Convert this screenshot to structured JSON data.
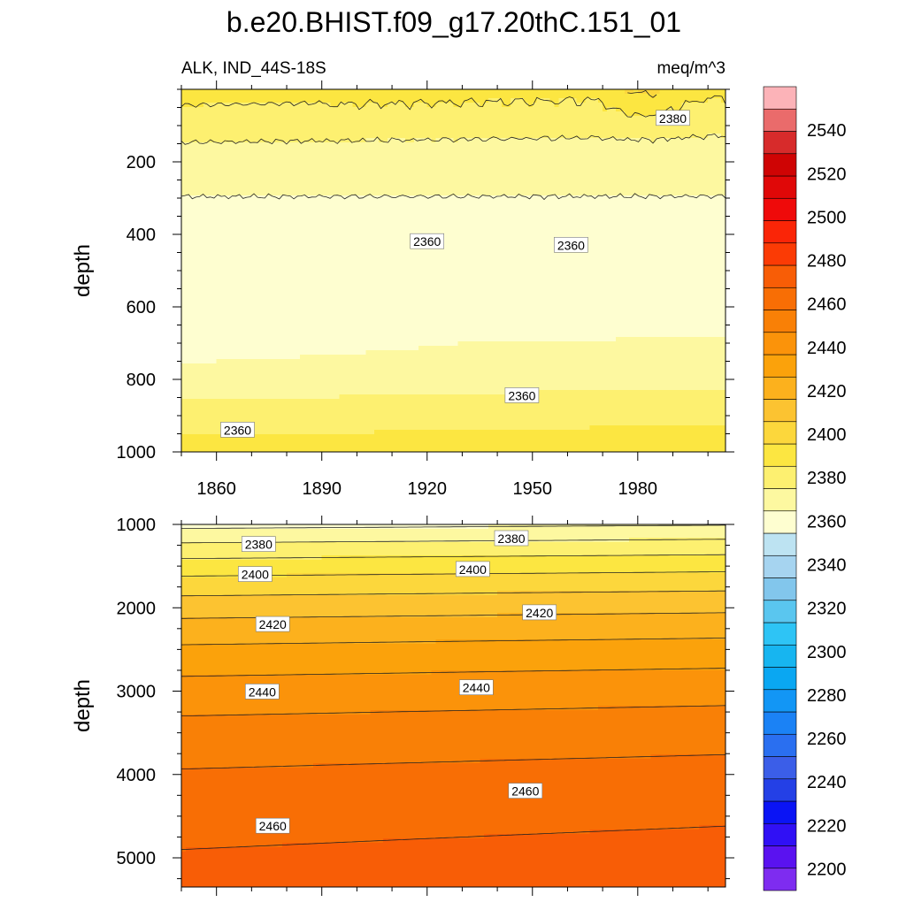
{
  "chart_data": {
    "type": "contour",
    "title": "b.e20.BHIST.f09_g17.20thC.151_01",
    "variable_label": "ALK, IND_44S-18S",
    "units": "meq/m^3",
    "xrange": [
      1850,
      2005
    ],
    "x_ticks": [
      1860,
      1890,
      1920,
      1950,
      1980
    ],
    "colorbar": {
      "min": 2190,
      "max": 2560,
      "step": 10,
      "tick_labels": [
        2200,
        2220,
        2240,
        2260,
        2280,
        2300,
        2320,
        2340,
        2360,
        2380,
        2400,
        2420,
        2440,
        2460,
        2480,
        2500,
        2520,
        2540
      ],
      "colors": [
        "#7e2cf0",
        "#5a12f0",
        "#3010f5",
        "#0a14f5",
        "#2440e6",
        "#3b5ee8",
        "#2a6ff0",
        "#1b82f5",
        "#1296f5",
        "#0aa7f2",
        "#17b5f0",
        "#2ec4f5",
        "#5ac6ef",
        "#82c6ec",
        "#a6d4f0",
        "#bde3f2",
        "#fefed0",
        "#fdf8a0",
        "#fdf070",
        "#fce641",
        "#fcd73c",
        "#fcc331",
        "#fcb11d",
        "#fba20b",
        "#fb930a",
        "#f98006",
        "#f86e05",
        "#f85d06",
        "#fb3b05",
        "#fa2507",
        "#ef0a0a",
        "#e00808",
        "#cf0404",
        "#d72b2b",
        "#ea6b6b",
        "#fcb3b8"
      ]
    },
    "panels": [
      {
        "id": "upper",
        "ylabel": "depth",
        "ylim": [
          0,
          1000
        ],
        "y_ticks": [
          200,
          400,
          600,
          800,
          1000
        ],
        "show_x_tick_labels": true,
        "contour_labels": [
          {
            "text": "2380",
            "x": 1990,
            "y": 80
          },
          {
            "text": "2360",
            "x": 1920,
            "y": 420
          },
          {
            "text": "2360",
            "x": 1961,
            "y": 430
          },
          {
            "text": "2360",
            "x": 1947,
            "y": 845
          },
          {
            "text": "2360",
            "x": 1866,
            "y": 940
          }
        ]
      },
      {
        "id": "lower",
        "ylabel": "depth",
        "ylim": [
          1000,
          5350
        ],
        "y_ticks": [
          1000,
          2000,
          3000,
          4000,
          5000
        ],
        "show_x_tick_labels": false,
        "contour_labels": [
          {
            "text": "2380",
            "x": 1872,
            "y": 1240
          },
          {
            "text": "2380",
            "x": 1944,
            "y": 1170
          },
          {
            "text": "2400",
            "x": 1871,
            "y": 1600
          },
          {
            "text": "2400",
            "x": 1933,
            "y": 1540
          },
          {
            "text": "2420",
            "x": 1876,
            "y": 2200
          },
          {
            "text": "2420",
            "x": 1952,
            "y": 2060
          },
          {
            "text": "2440",
            "x": 1873,
            "y": 3010
          },
          {
            "text": "2440",
            "x": 1934,
            "y": 2960
          },
          {
            "text": "2460",
            "x": 1876,
            "y": 4620
          },
          {
            "text": "2460",
            "x": 1948,
            "y": 4200
          }
        ]
      }
    ]
  }
}
